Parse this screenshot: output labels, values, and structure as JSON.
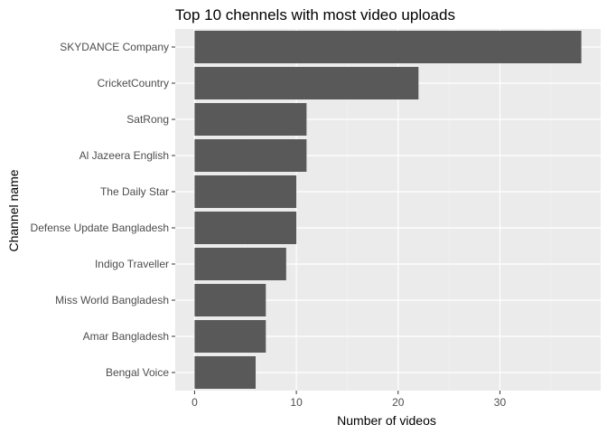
{
  "chart_data": {
    "type": "bar",
    "orientation": "horizontal",
    "title": "Top 10 chennels with most video uploads",
    "xlabel": "Number of videos",
    "ylabel": "Channel name",
    "categories": [
      "SKYDANCE Company",
      "CricketCountry",
      "SatRong",
      "Al Jazeera English",
      "The Daily Star",
      "Defense Update Bangladesh",
      "Indigo Traveller",
      "Miss World Bangladesh",
      "Amar Bangladesh",
      "Bengal Voice"
    ],
    "values": [
      38,
      22,
      11,
      11,
      10,
      10,
      9,
      7,
      7,
      6
    ],
    "xlim": [
      -1.9,
      39.9
    ],
    "xticks": [
      0,
      10,
      20,
      30
    ],
    "grid": true,
    "legend": "none",
    "colors": {
      "bar": "#595959",
      "panel_background": "#ebebeb",
      "grid_major": "#ffffff",
      "grid_minor": "#f5f5f5",
      "tick_label": "#4d4d4d",
      "text": "#000000"
    }
  }
}
